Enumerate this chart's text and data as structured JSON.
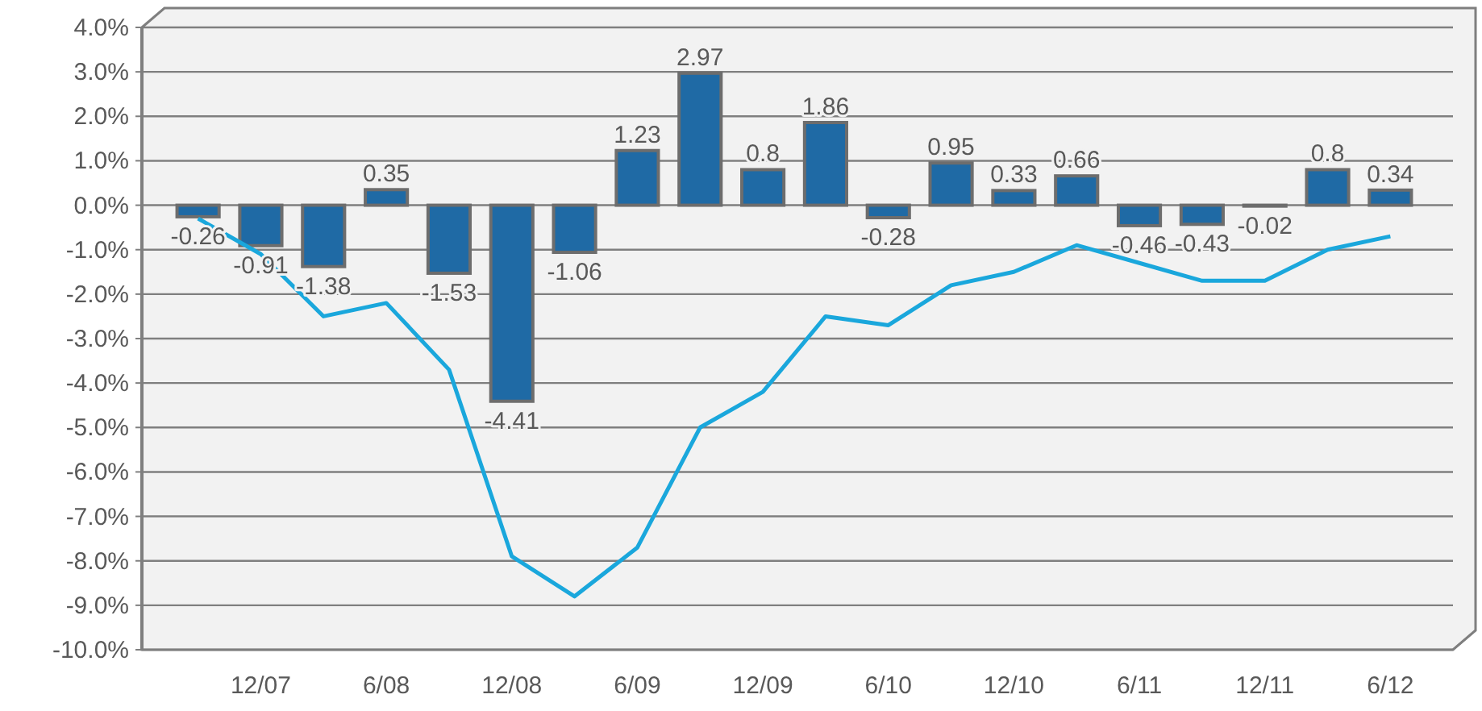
{
  "chart_data": {
    "type": "bar",
    "categories": [
      null,
      "12/07",
      null,
      "6/08",
      null,
      "12/08",
      null,
      "6/09",
      null,
      "12/09",
      null,
      "6/10",
      null,
      "12/10",
      null,
      "6/11",
      null,
      "12/11",
      null,
      "6/12"
    ],
    "series": [
      {
        "color": "#1f6aa5",
        "values": [
          -0.26,
          -0.91,
          -1.38,
          0.35,
          -1.53,
          -4.41,
          -1.06,
          1.23,
          2.97,
          0.8,
          1.86,
          -0.28,
          0.95,
          0.33,
          0.66,
          -0.46,
          -0.43,
          -0.02,
          0.8,
          0.34
        ],
        "value_labels": [
          "-0.26",
          "-0.91",
          "-1.38",
          "0.35",
          "-1.53",
          "-4.41",
          "-1.06",
          "1.23",
          "2.97",
          "0.8",
          "1.86",
          "-0.28",
          "0.95",
          "0.33",
          "0.66",
          "-0.46",
          "-0.43",
          "-0.02",
          "0.8",
          "0.34"
        ]
      },
      {
        "type": "line",
        "color": "#1aa7dc",
        "values": [
          -0.3,
          -1.1,
          -2.5,
          -2.2,
          -3.7,
          -7.9,
          -8.8,
          -7.7,
          -5.0,
          -4.2,
          -2.5,
          -2.7,
          -1.8,
          -1.5,
          -0.9,
          -1.3,
          -1.7,
          -1.7,
          -1.0,
          -0.7
        ]
      }
    ],
    "ylim": [
      -10,
      4
    ],
    "yticks": [
      {
        "value": 4,
        "label": "4.0%"
      },
      {
        "value": 3,
        "label": "3.0%"
      },
      {
        "value": 2,
        "label": "2.0%"
      },
      {
        "value": 1,
        "label": "1.0%"
      },
      {
        "value": 0,
        "label": "0.0%"
      },
      {
        "value": -1,
        "label": "-1.0%"
      },
      {
        "value": -2,
        "label": "-2.0%"
      },
      {
        "value": -3,
        "label": "-3.0%"
      },
      {
        "value": -4,
        "label": "-4.0%"
      },
      {
        "value": -5,
        "label": "-5.0%"
      },
      {
        "value": -6,
        "label": "-6.0%"
      },
      {
        "value": -7,
        "label": "-7.0%"
      },
      {
        "value": -8,
        "label": "-8.0%"
      },
      {
        "value": -9,
        "label": "-9.0%"
      },
      {
        "value": -10,
        "label": "-10.0%"
      }
    ],
    "grid": "y",
    "marker": "none"
  }
}
